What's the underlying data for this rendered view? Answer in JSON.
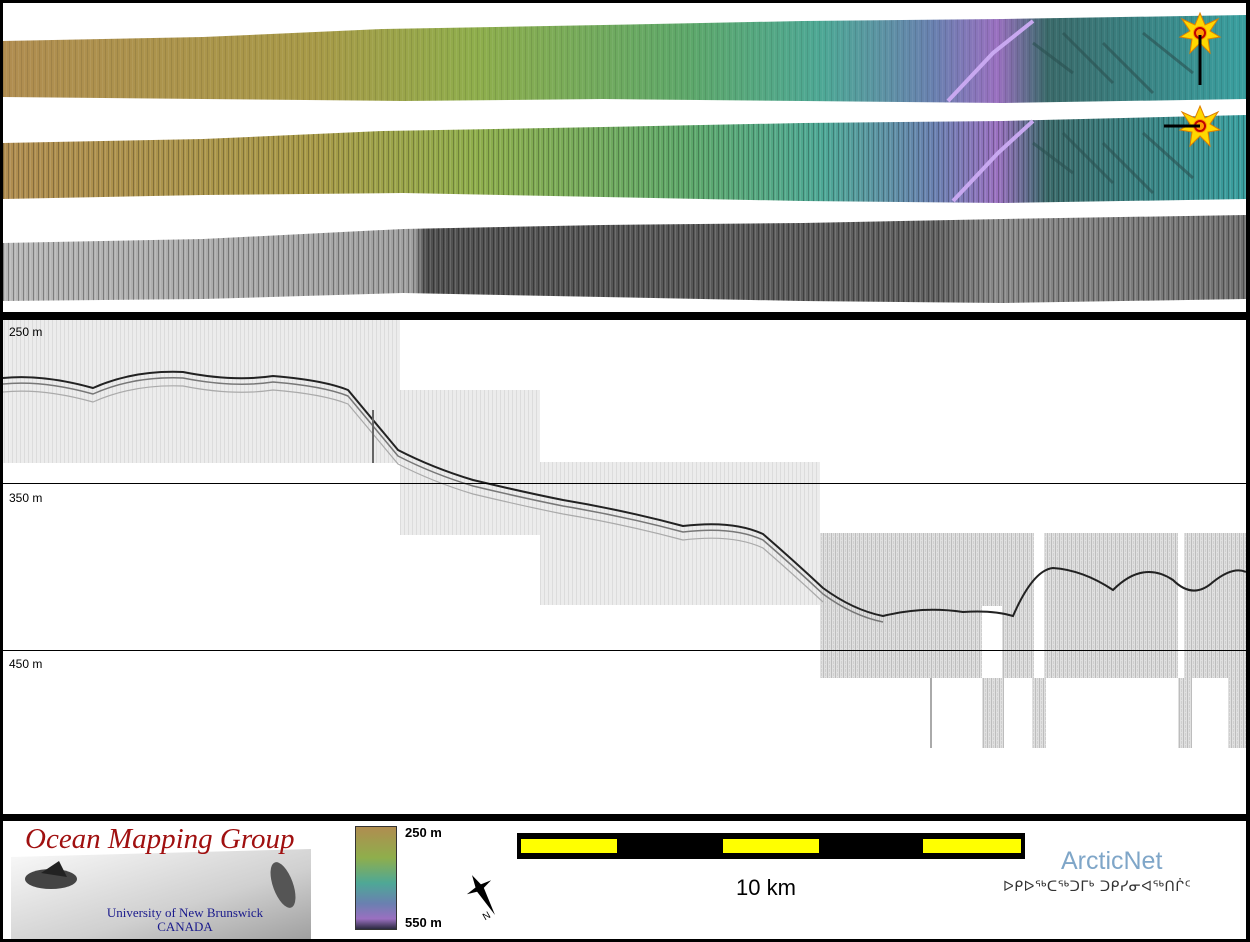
{
  "depth_axis": {
    "labels": [
      "250 m",
      "350 m",
      "450 m"
    ]
  },
  "legend": {
    "logo_title": "Ocean Mapping Group",
    "logo_subtitle_line1": "University of New Brunswick",
    "logo_subtitle_line2": "CANADA",
    "colorbar_top": "250 m",
    "colorbar_bottom": "550 m",
    "scale_label": "10 km",
    "partner_name": "ArcticNet",
    "partner_syllabics": "ᐅᑭᐅᖅᑕᖅᑐᒥᒃ ᑐᑭᓯᓂᐊᖅᑎᒌᑦ"
  },
  "colors": {
    "scale_bar_yellow": "#ffff00",
    "scale_bar_black": "#000000",
    "logo_red": "#a01010",
    "logo_blue": "#1a1a8c",
    "arcticnet_blue": "#7fa6c8"
  },
  "icons": {
    "sun_marker": "sun-icon",
    "north_arrow": "north-arrow-icon"
  }
}
